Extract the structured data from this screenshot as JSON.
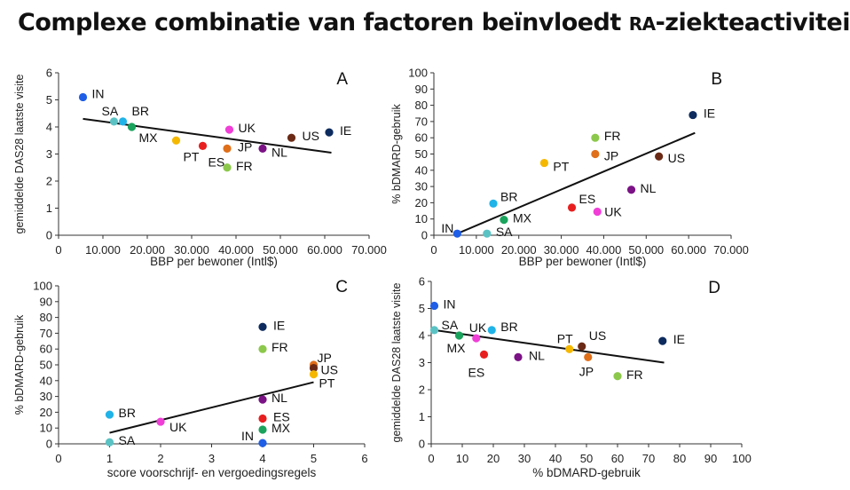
{
  "title": {
    "before": "Complexe combinatie van factoren beïnvloedt ",
    "abbr": "RA",
    "after": "-ziekteactiviteit"
  },
  "chart_data": [
    {
      "id": "A",
      "panel_label": "A",
      "type": "scatter",
      "xlabel": "BBP per bewoner (Intl$)",
      "ylabel": "gemiddelde DAS28 laatste visite",
      "xlim": [
        0,
        70000
      ],
      "ylim": [
        0,
        6
      ],
      "xticks": [
        0,
        10000,
        20000,
        30000,
        40000,
        50000,
        60000,
        70000
      ],
      "xtick_labels": [
        "0",
        "10.000",
        "20.000",
        "30.000",
        "40.000",
        "50.000",
        "60.000",
        "70.000"
      ],
      "yticks": [
        0,
        1,
        2,
        3,
        4,
        5,
        6
      ],
      "ytick_labels": [
        "0",
        "1",
        "2",
        "3",
        "4",
        "5",
        "6"
      ],
      "trendline": [
        [
          5500,
          4.3
        ],
        [
          61500,
          3.05
        ]
      ],
      "points": [
        {
          "label": "IN",
          "x": 5500,
          "y": 5.1,
          "color": "#1f5ee6",
          "lx": 2,
          "ly": -4
        },
        {
          "label": "SA",
          "x": 12500,
          "y": 4.2,
          "color": "#5bc2c4",
          "lx": -22,
          "ly": -12
        },
        {
          "label": "BR",
          "x": 14500,
          "y": 4.2,
          "color": "#1fb3e8",
          "lx": 2,
          "ly": -12
        },
        {
          "label": "MX",
          "x": 16500,
          "y": 4.0,
          "color": "#1aa35c",
          "lx": 0,
          "ly": 12
        },
        {
          "label": "PT",
          "x": 26500,
          "y": 3.5,
          "color": "#f5b800",
          "lx": 0,
          "ly": 18
        },
        {
          "label": "ES",
          "x": 32500,
          "y": 3.3,
          "color": "#e81f1f",
          "lx": -2,
          "ly": 18
        },
        {
          "label": "UK",
          "x": 38500,
          "y": 3.9,
          "color": "#f03ed7",
          "lx": 2,
          "ly": -2
        },
        {
          "label": "JP",
          "x": 38000,
          "y": 3.2,
          "color": "#e06f1a",
          "lx": 4,
          "ly": -2
        },
        {
          "label": "FR",
          "x": 38000,
          "y": 2.5,
          "color": "#8cc84b",
          "lx": 2,
          "ly": -2
        },
        {
          "label": "NL",
          "x": 46000,
          "y": 3.2,
          "color": "#7b1285",
          "lx": 2,
          "ly": 4
        },
        {
          "label": "US",
          "x": 52500,
          "y": 3.6,
          "color": "#6b2a15",
          "lx": 4,
          "ly": -2
        },
        {
          "label": "IE",
          "x": 61000,
          "y": 3.8,
          "color": "#0d2b5e",
          "lx": 4,
          "ly": -2
        }
      ]
    },
    {
      "id": "B",
      "panel_label": "B",
      "type": "scatter",
      "xlabel": "BBP per bewoner (Intl$)",
      "ylabel": "% bDMARD-gebruik",
      "xlim": [
        0,
        70000
      ],
      "ylim": [
        0,
        100
      ],
      "xticks": [
        0,
        10000,
        20000,
        30000,
        40000,
        50000,
        60000,
        70000
      ],
      "xtick_labels": [
        "0",
        "10.000",
        "20.000",
        "30.000",
        "40.000",
        "50.000",
        "60.000",
        "70.000"
      ],
      "yticks": [
        0,
        10,
        20,
        30,
        40,
        50,
        60,
        70,
        80,
        90,
        100
      ],
      "ytick_labels": [
        "0",
        "10",
        "20",
        "30",
        "40",
        "50",
        "60",
        "70",
        "80",
        "90",
        "100"
      ],
      "trendline": [
        [
          5500,
          1
        ],
        [
          61500,
          63
        ]
      ],
      "points": [
        {
          "label": "IN",
          "x": 5500,
          "y": 1,
          "color": "#1f5ee6",
          "lx": -26,
          "ly": -6
        },
        {
          "label": "SA",
          "x": 12500,
          "y": 1,
          "color": "#5bc2c4",
          "lx": 2,
          "ly": -2
        },
        {
          "label": "BR",
          "x": 14000,
          "y": 19.5,
          "color": "#1fb3e8",
          "lx": 0,
          "ly": -8
        },
        {
          "label": "MX",
          "x": 16500,
          "y": 9.5,
          "color": "#1aa35c",
          "lx": 2,
          "ly": -2
        },
        {
          "label": "PT",
          "x": 26000,
          "y": 44.5,
          "color": "#f5b800",
          "lx": 2,
          "ly": 4
        },
        {
          "label": "ES",
          "x": 32500,
          "y": 17,
          "color": "#e81f1f",
          "lx": 0,
          "ly": -10
        },
        {
          "label": "FR",
          "x": 38000,
          "y": 60,
          "color": "#8cc84b",
          "lx": 2,
          "ly": -2
        },
        {
          "label": "JP",
          "x": 38000,
          "y": 50,
          "color": "#e06f1a",
          "lx": 2,
          "ly": 2
        },
        {
          "label": "UK",
          "x": 38500,
          "y": 14.5,
          "color": "#f03ed7",
          "lx": 0,
          "ly": 0
        },
        {
          "label": "NL",
          "x": 46500,
          "y": 28,
          "color": "#7b1285",
          "lx": 2,
          "ly": -2
        },
        {
          "label": "US",
          "x": 53000,
          "y": 48.5,
          "color": "#6b2a15",
          "lx": 2,
          "ly": 2
        },
        {
          "label": "IE",
          "x": 61000,
          "y": 74,
          "color": "#0d2b5e",
          "lx": 4,
          "ly": -2
        }
      ]
    },
    {
      "id": "C",
      "panel_label": "C",
      "type": "scatter",
      "xlabel": "score voorschrijf- en vergoedingsregels",
      "ylabel": "% bDMARD-gebruik",
      "xlim": [
        0,
        6
      ],
      "ylim": [
        0,
        100
      ],
      "xticks": [
        0,
        1,
        2,
        3,
        4,
        5,
        6
      ],
      "xtick_labels": [
        "0",
        "1",
        "2",
        "3",
        "4",
        "5",
        "6"
      ],
      "yticks": [
        0,
        10,
        20,
        30,
        40,
        50,
        60,
        70,
        80,
        90,
        100
      ],
      "ytick_labels": [
        "0",
        "10",
        "20",
        "30",
        "40",
        "50",
        "60",
        "70",
        "80",
        "90",
        "100"
      ],
      "trendline": [
        [
          1,
          7
        ],
        [
          5,
          39
        ]
      ],
      "points": [
        {
          "label": "BR",
          "x": 1,
          "y": 18.5,
          "color": "#1fb3e8",
          "lx": 2,
          "ly": -2
        },
        {
          "label": "SA",
          "x": 1,
          "y": 1,
          "color": "#5bc2c4",
          "lx": 2,
          "ly": -2
        },
        {
          "label": "UK",
          "x": 2,
          "y": 14,
          "color": "#f03ed7",
          "lx": 2,
          "ly": 6
        },
        {
          "label": "IE",
          "x": 4,
          "y": 74,
          "color": "#0d2b5e",
          "lx": 4,
          "ly": -2
        },
        {
          "label": "FR",
          "x": 4,
          "y": 60,
          "color": "#8cc84b",
          "lx": 2,
          "ly": -2
        },
        {
          "label": "NL",
          "x": 4,
          "y": 28,
          "color": "#7b1285",
          "lx": 2,
          "ly": -2
        },
        {
          "label": "ES",
          "x": 4,
          "y": 16,
          "color": "#e81f1f",
          "lx": 4,
          "ly": -2
        },
        {
          "label": "MX",
          "x": 4,
          "y": 9,
          "color": "#1aa35c",
          "lx": 2,
          "ly": -2
        },
        {
          "label": "IN",
          "x": 4,
          "y": 0.5,
          "color": "#1f5ee6",
          "lx": -32,
          "ly": -8
        },
        {
          "label": "JP",
          "x": 5,
          "y": 50,
          "color": "#e06f1a",
          "lx": -4,
          "ly": -8
        },
        {
          "label": "US",
          "x": 5,
          "y": 48,
          "color": "#6b2a15",
          "lx": 0,
          "ly": 2
        },
        {
          "label": "PT",
          "x": 5,
          "y": 44,
          "color": "#f5b800",
          "lx": -2,
          "ly": 10
        }
      ]
    },
    {
      "id": "D",
      "panel_label": "D",
      "type": "scatter",
      "xlabel": "% bDMARD-gebruik",
      "ylabel": "gemiddelde DAS28 laatste visite",
      "xlim": [
        0,
        100
      ],
      "ylim": [
        0,
        6
      ],
      "xticks": [
        0,
        10,
        20,
        30,
        40,
        50,
        60,
        70,
        80,
        90,
        100
      ],
      "xtick_labels": [
        "0",
        "10",
        "20",
        "30",
        "40",
        "50",
        "60",
        "70",
        "80",
        "90",
        "100"
      ],
      "yticks": [
        0,
        1,
        2,
        3,
        4,
        5,
        6
      ],
      "ytick_labels": [
        "0",
        "1",
        "2",
        "3",
        "4",
        "5",
        "6"
      ],
      "trendline": [
        [
          1,
          4.2
        ],
        [
          75,
          3.0
        ]
      ],
      "points": [
        {
          "label": "IN",
          "x": 1,
          "y": 5.1,
          "color": "#1f5ee6",
          "lx": 2,
          "ly": -2
        },
        {
          "label": "SA",
          "x": 1,
          "y": 4.2,
          "color": "#5bc2c4",
          "lx": 0,
          "ly": -6
        },
        {
          "label": "MX",
          "x": 9,
          "y": 4.0,
          "color": "#1aa35c",
          "lx": -22,
          "ly": 14
        },
        {
          "label": "UK",
          "x": 14.5,
          "y": 3.9,
          "color": "#f03ed7",
          "lx": -16,
          "ly": -12
        },
        {
          "label": "BR",
          "x": 19.5,
          "y": 4.2,
          "color": "#1fb3e8",
          "lx": 2,
          "ly": -4
        },
        {
          "label": "ES",
          "x": 17,
          "y": 3.3,
          "color": "#e81f1f",
          "lx": -26,
          "ly": 20
        },
        {
          "label": "NL",
          "x": 28,
          "y": 3.2,
          "color": "#7b1285",
          "lx": 4,
          "ly": -2
        },
        {
          "label": "PT",
          "x": 44.5,
          "y": 3.5,
          "color": "#f5b800",
          "lx": -22,
          "ly": -12
        },
        {
          "label": "US",
          "x": 48.5,
          "y": 3.6,
          "color": "#6b2a15",
          "lx": 0,
          "ly": -12
        },
        {
          "label": "JP",
          "x": 50.5,
          "y": 3.2,
          "color": "#e06f1a",
          "lx": -18,
          "ly": 16
        },
        {
          "label": "FR",
          "x": 60,
          "y": 2.5,
          "color": "#8cc84b",
          "lx": 2,
          "ly": -2
        },
        {
          "label": "IE",
          "x": 74.5,
          "y": 3.8,
          "color": "#0d2b5e",
          "lx": 4,
          "ly": -2
        }
      ]
    }
  ]
}
